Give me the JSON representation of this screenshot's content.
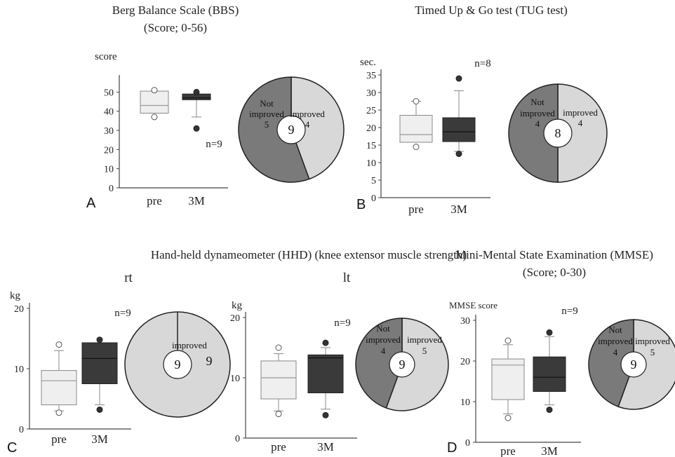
{
  "colors": {
    "pre_fill": "#efefef",
    "post_fill": "#3a3a3a",
    "not_improved": "#7a7a7a",
    "improved": "#d8d8d8",
    "axis": "#444444"
  },
  "group_titles": {
    "hhd": "Hand-held dynameometer (HHD) (knee extensor muscle strength)"
  },
  "chart_data": [
    {
      "type": "box",
      "panel": "A",
      "title": [
        "Berg Balance Scale (BBS)",
        "(Score; 0-56)"
      ],
      "ylabel": "score",
      "ylim": [
        0,
        56
      ],
      "yticks": [
        0,
        10,
        20,
        30,
        40,
        50
      ],
      "categories": [
        "pre",
        "3M"
      ],
      "n_label": "n=9",
      "boxes": [
        {
          "name": "pre",
          "q1": 39,
          "median": 43,
          "q3": 50.5,
          "whisker_low": 39,
          "whisker_high": 50.5,
          "outliers_open": [
            37,
            51
          ],
          "outliers_filled": []
        },
        {
          "name": "3M",
          "q1": 46,
          "median": 47,
          "q3": 49,
          "whisker_low": 37,
          "whisker_high": 49,
          "outliers_open": [],
          "outliers_filled": [
            31,
            50
          ]
        }
      ],
      "pie": {
        "center_label": "9",
        "slices": [
          {
            "label_lines": [
              "Not",
              "improved",
              "5"
            ],
            "value": 5,
            "kind": "not_improved"
          },
          {
            "label_lines": [
              "improved",
              "4"
            ],
            "value": 4,
            "kind": "improved"
          }
        ]
      }
    },
    {
      "type": "box",
      "panel": "B",
      "title": [
        "Timed Up & Go test (TUG test)"
      ],
      "ylabel": "sec.",
      "ylim": [
        0,
        35
      ],
      "yticks": [
        0,
        5,
        10,
        15,
        20,
        25,
        30,
        35
      ],
      "categories": [
        "pre",
        "3M"
      ],
      "n_label": "n=8",
      "boxes": [
        {
          "name": "pre",
          "q1": 15.8,
          "median": 18,
          "q3": 23.5,
          "whisker_low": 15.8,
          "whisker_high": 27.5,
          "outliers_open": [
            14.5,
            27.5
          ],
          "outliers_filled": []
        },
        {
          "name": "3M",
          "q1": 16,
          "median": 18.8,
          "q3": 22.8,
          "whisker_low": 13.2,
          "whisker_high": 30.5,
          "outliers_open": [],
          "outliers_filled": [
            12.5,
            34
          ]
        }
      ],
      "pie": {
        "center_label": "8",
        "slices": [
          {
            "label_lines": [
              "Not",
              "improved",
              "4"
            ],
            "value": 4,
            "kind": "not_improved"
          },
          {
            "label_lines": [
              "improved",
              "4"
            ],
            "value": 4,
            "kind": "improved"
          }
        ]
      }
    },
    {
      "type": "box",
      "panel": "C",
      "subtitle": "rt",
      "ylabel": "kg",
      "ylim": [
        0,
        20
      ],
      "yticks": [
        0,
        10,
        20
      ],
      "categories": [
        "pre",
        "3M"
      ],
      "n_label": "n=9",
      "boxes": [
        {
          "name": "pre",
          "q1": 4,
          "median": 8,
          "q3": 9.7,
          "whisker_low": 3,
          "whisker_high": 13,
          "outliers_open": [
            2.7,
            14
          ],
          "outliers_filled": []
        },
        {
          "name": "3M",
          "q1": 7.5,
          "median": 11.7,
          "q3": 14.3,
          "whisker_low": 4,
          "whisker_high": 14.3,
          "outliers_open": [],
          "outliers_filled": [
            3.2,
            14.8
          ]
        }
      ],
      "pie": {
        "center_label": "9",
        "slices": [
          {
            "label_lines": [
              "improved"
            ],
            "value": 9,
            "kind": "improved",
            "value_label": "9"
          }
        ]
      }
    },
    {
      "type": "box",
      "panel": "C",
      "subtitle": "lt",
      "ylabel": "kg",
      "ylim": [
        0,
        20
      ],
      "yticks": [
        0,
        10,
        20
      ],
      "categories": [
        "pre",
        "3M"
      ],
      "n_label": "n=9",
      "boxes": [
        {
          "name": "pre",
          "q1": 6.5,
          "median": 10,
          "q3": 12.8,
          "whisker_low": 4.5,
          "whisker_high": 14,
          "outliers_open": [
            4,
            15
          ],
          "outliers_filled": []
        },
        {
          "name": "3M",
          "q1": 7.5,
          "median": 13.3,
          "q3": 13.8,
          "whisker_low": 4.8,
          "whisker_high": 15,
          "outliers_open": [],
          "outliers_filled": [
            3.8,
            15.8
          ]
        }
      ],
      "pie": {
        "center_label": "9",
        "slices": [
          {
            "label_lines": [
              "Not",
              "improved",
              "4"
            ],
            "value": 4,
            "kind": "not_improved"
          },
          {
            "label_lines": [
              "improved",
              "5"
            ],
            "value": 5,
            "kind": "improved"
          }
        ]
      }
    },
    {
      "type": "box",
      "panel": "D",
      "title": [
        "Mini-Mental State Examination (MMSE)",
        "(Score; 0-30)"
      ],
      "ylabel": "MMSE score",
      "ylim": [
        0,
        30
      ],
      "yticks": [
        0,
        10,
        20,
        30
      ],
      "categories": [
        "pre",
        "3M"
      ],
      "n_label": "n=9",
      "boxes": [
        {
          "name": "pre",
          "q1": 10.5,
          "median": 19,
          "q3": 20.5,
          "whisker_low": 7,
          "whisker_high": 24,
          "outliers_open": [
            6,
            25
          ],
          "outliers_filled": []
        },
        {
          "name": "3M",
          "q1": 12.5,
          "median": 16,
          "q3": 21,
          "whisker_low": 9.2,
          "whisker_high": 26,
          "outliers_open": [],
          "outliers_filled": [
            8,
            27
          ]
        }
      ],
      "pie": {
        "center_label": "9",
        "slices": [
          {
            "label_lines": [
              "Not",
              "improved",
              "4"
            ],
            "value": 4,
            "kind": "not_improved"
          },
          {
            "label_lines": [
              "improved",
              "5"
            ],
            "value": 5,
            "kind": "improved"
          }
        ]
      }
    }
  ]
}
